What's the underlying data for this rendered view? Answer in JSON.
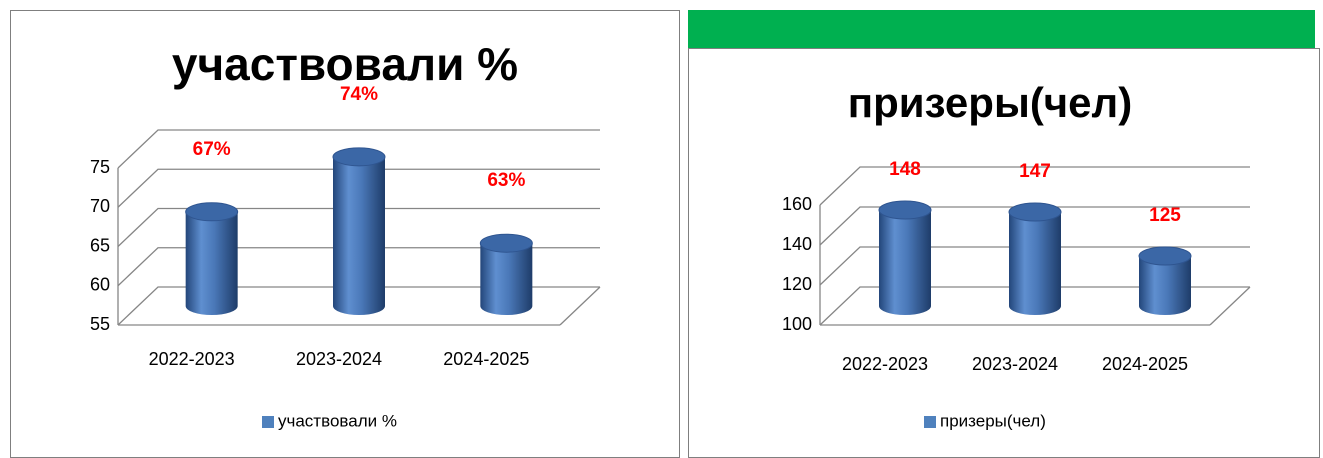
{
  "chart_data": [
    {
      "type": "bar",
      "title": "участвовали %",
      "categories": [
        "2022-2023",
        "2023-2024",
        "2024-2025"
      ],
      "series": [
        {
          "name": "участвовали %",
          "color": "#4f81bd",
          "values": [
            67,
            74,
            63
          ],
          "value_labels": [
            "67%",
            "74%",
            "63%"
          ]
        }
      ],
      "ylim": [
        55,
        75
      ],
      "yticks": [
        55,
        60,
        65,
        70,
        75
      ],
      "grid": true,
      "legend": "bottom"
    },
    {
      "type": "bar",
      "title": "призеры(чел)",
      "categories": [
        "2022-2023",
        "2023-2024",
        "2024-2025"
      ],
      "series": [
        {
          "name": "призеры(чел)",
          "color": "#4f81bd",
          "values": [
            148,
            147,
            125
          ],
          "value_labels": [
            "148",
            "147",
            "125"
          ]
        }
      ],
      "ylim": [
        100,
        160
      ],
      "yticks": [
        100,
        120,
        140,
        160
      ],
      "grid": true,
      "legend": "bottom"
    }
  ]
}
